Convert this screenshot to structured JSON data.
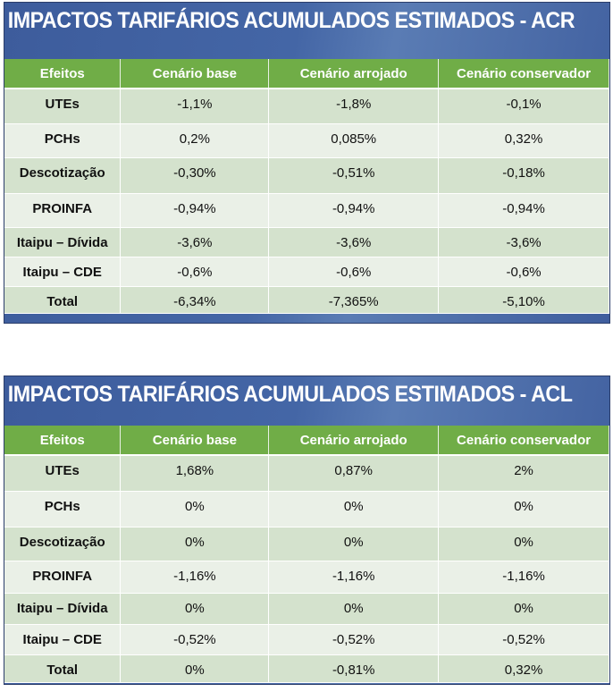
{
  "tables": [
    {
      "title": "IMPACTOS TARIFÁRIOS ACUMULADOS ESTIMADOS - ACR",
      "headers": [
        "Efeitos",
        "Cenário base",
        "Cenário arrojado",
        "Cenário conservador"
      ],
      "rows": [
        [
          "UTEs",
          "-1,1%",
          "-1,8%",
          "-0,1%"
        ],
        [
          "PCHs",
          "0,2%",
          "0,085%",
          "0,32%"
        ],
        [
          "Descotização",
          "-0,30%",
          "-0,51%",
          "-0,18%"
        ],
        [
          "PROINFA",
          "-0,94%",
          "-0,94%",
          "-0,94%"
        ],
        [
          "Itaipu – Dívida",
          "-3,6%",
          "-3,6%",
          "-3,6%"
        ],
        [
          "Itaipu – CDE",
          "-0,6%",
          "-0,6%",
          "-0,6%"
        ],
        [
          "Total",
          "-6,34%",
          "-7,365%",
          "-5,10%"
        ]
      ]
    },
    {
      "title": "IMPACTOS TARIFÁRIOS ACUMULADOS ESTIMADOS - ACL",
      "headers": [
        "Efeitos",
        "Cenário base",
        "Cenário arrojado",
        "Cenário conservador"
      ],
      "rows": [
        [
          "UTEs",
          "1,68%",
          "0,87%",
          "2%"
        ],
        [
          "PCHs",
          "0%",
          "0%",
          "0%"
        ],
        [
          "Descotização",
          "0%",
          "0%",
          "0%"
        ],
        [
          "PROINFA",
          "-1,16%",
          "-1,16%",
          "-1,16%"
        ],
        [
          "Itaipu – Dívida",
          "0%",
          "0%",
          "0%"
        ],
        [
          "Itaipu – CDE",
          "-0,52%",
          "-0,52%",
          "-0,52%"
        ],
        [
          "Total",
          "0%",
          "-0,81%",
          "0,32%"
        ]
      ]
    }
  ]
}
